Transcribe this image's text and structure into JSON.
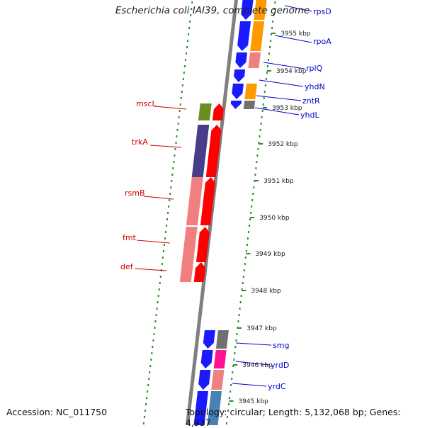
{
  "title": "Escherichia coli IAI39, complete genome",
  "footer": {
    "accession": "Accession: NC_011750",
    "topology": "Topology: circular; Length: 5,132,068 bp; Genes: 4,937"
  },
  "colors": {
    "backbone": "#808080",
    "dots": "#2e8b2e",
    "forward_label": "#0000cc",
    "reverse_label": "#cc0000",
    "blue": "#1a1aff",
    "orange": "#ff9900",
    "pink": "#f08080",
    "red": "#ff0000",
    "olive": "#6b8e23",
    "purple": "#483d8b",
    "gray": "#707070",
    "magenta": "#ff1493",
    "steelblue": "#4682b4"
  },
  "scale_labels": [
    "3955 kbp",
    "3954 kbp",
    "3953 kbp",
    "3952 kbp",
    "3951 kbp",
    "3950 kbp",
    "3949 kbp",
    "3948 kbp",
    "3947 kbp",
    "3946 kbp",
    "3945 kbp"
  ],
  "forward_genes": [
    "rpsD",
    "rpoA",
    "rplQ",
    "yhdN",
    "zntR",
    "yhdL",
    "smg",
    "yrdD",
    "yrdC"
  ],
  "reverse_genes": [
    "mscL",
    "trkA",
    "rsmB",
    "fmt",
    "def"
  ]
}
